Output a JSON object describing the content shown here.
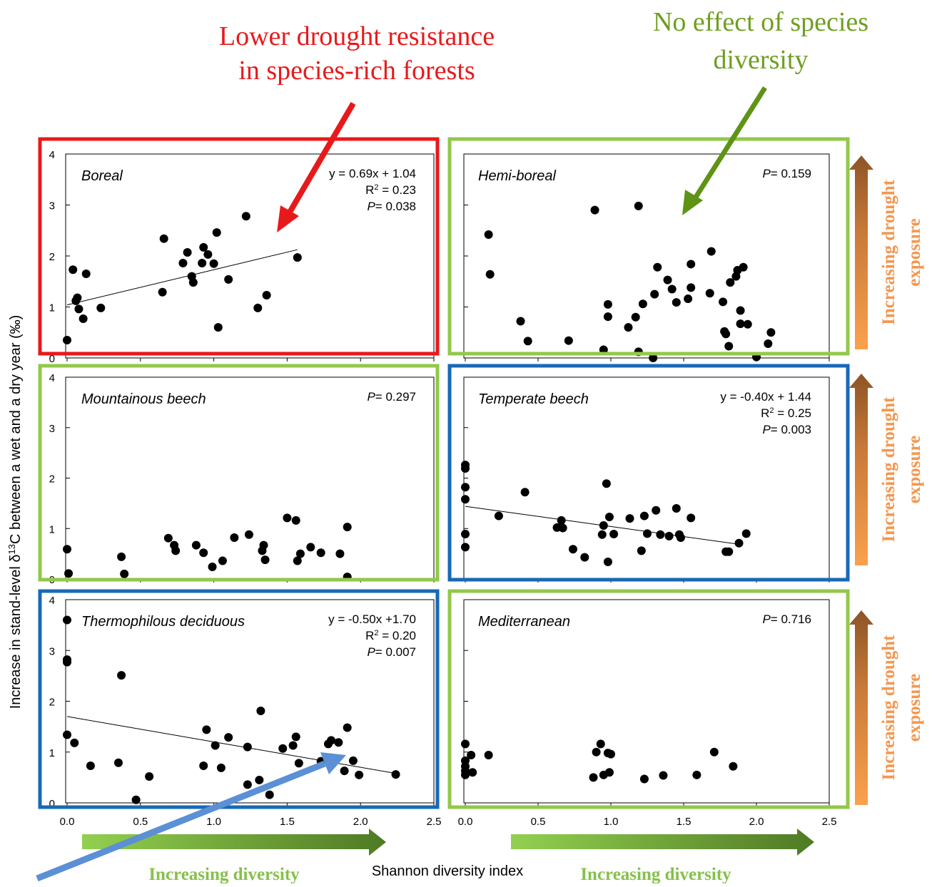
{
  "annotations": {
    "top_left": [
      "Lower drought resistance",
      "in species-rich forests"
    ],
    "top_right": [
      "No effect of species",
      "diversity"
    ]
  },
  "axes": {
    "ylabel_pre": "Increase in stand-level δ",
    "ylabel_sup": "13",
    "ylabel_post": "C between a wet and a dry year (‰)",
    "xlabel": "Shannon diversity index",
    "y_ticks": [
      "0",
      "1",
      "2",
      "3",
      "4"
    ],
    "x_ticks": [
      "0.0",
      "0.5",
      "1.0",
      "1.5",
      "2.0",
      "2.5"
    ]
  },
  "bottom_labels": [
    "Increasing diversity",
    "Increasing diversity"
  ],
  "side_labels": [
    "Increasing drought",
    "exposure"
  ],
  "colors": {
    "red": "#e8191b",
    "green": "#92c849",
    "blue": "#1769b6",
    "dark_green": "#5f9315",
    "arrow_blue": "#5b8fd6",
    "text_red": "#e8191b",
    "text_green": "#6f9e20",
    "side_orange": "#f5964f",
    "bottom_green": "#86c04a"
  },
  "chart_data": [
    {
      "type": "scatter",
      "title": "Boreal",
      "border": "red",
      "xlim": [
        0,
        2.5
      ],
      "ylim": [
        0,
        4
      ],
      "stats": [
        "y = 0.69x + 1.04",
        "R² = 0.23",
        "P= 0.038"
      ],
      "trend": {
        "slope": 0.69,
        "intercept": 1.04,
        "x_range": [
          0.0,
          1.57
        ]
      },
      "points": [
        [
          0.0,
          0.35
        ],
        [
          0.04,
          1.73
        ],
        [
          0.06,
          1.12
        ],
        [
          0.07,
          1.18
        ],
        [
          0.08,
          0.96
        ],
        [
          0.11,
          0.77
        ],
        [
          0.13,
          1.65
        ],
        [
          0.23,
          0.98
        ],
        [
          0.65,
          1.29
        ],
        [
          0.66,
          2.34
        ],
        [
          0.79,
          1.86
        ],
        [
          0.82,
          2.07
        ],
        [
          0.85,
          1.6
        ],
        [
          0.86,
          1.48
        ],
        [
          0.92,
          1.86
        ],
        [
          0.93,
          2.17
        ],
        [
          0.96,
          2.03
        ],
        [
          1.0,
          1.85
        ],
        [
          1.02,
          2.46
        ],
        [
          1.03,
          0.6
        ],
        [
          1.1,
          1.54
        ],
        [
          1.22,
          2.78
        ],
        [
          1.3,
          0.98
        ],
        [
          1.36,
          1.23
        ],
        [
          1.57,
          1.97
        ]
      ]
    },
    {
      "type": "scatter",
      "title": "Hemi-boreal",
      "border": "green",
      "xlim": [
        0,
        2.5
      ],
      "ylim": [
        0,
        4
      ],
      "stats": [
        "P= 0.159"
      ],
      "points": [
        [
          0.16,
          2.42
        ],
        [
          0.17,
          1.64
        ],
        [
          0.38,
          0.72
        ],
        [
          0.43,
          0.33
        ],
        [
          0.71,
          0.34
        ],
        [
          0.89,
          2.9
        ],
        [
          0.95,
          0.16
        ],
        [
          0.98,
          1.05
        ],
        [
          0.98,
          0.81
        ],
        [
          1.12,
          0.6
        ],
        [
          1.17,
          0.8
        ],
        [
          1.19,
          2.98
        ],
        [
          1.19,
          0.12
        ],
        [
          1.22,
          1.06
        ],
        [
          1.29,
          0.0
        ],
        [
          1.3,
          1.25
        ],
        [
          1.32,
          1.78
        ],
        [
          1.39,
          1.53
        ],
        [
          1.42,
          1.35
        ],
        [
          1.45,
          1.09
        ],
        [
          1.53,
          1.16
        ],
        [
          1.55,
          1.38
        ],
        [
          1.55,
          1.84
        ],
        [
          1.68,
          1.27
        ],
        [
          1.69,
          2.09
        ],
        [
          1.77,
          1.1
        ],
        [
          1.78,
          0.52
        ],
        [
          1.79,
          0.47
        ],
        [
          1.81,
          0.23
        ],
        [
          1.82,
          1.48
        ],
        [
          1.86,
          1.6
        ],
        [
          1.87,
          1.72
        ],
        [
          1.89,
          0.93
        ],
        [
          1.89,
          0.67
        ],
        [
          1.91,
          1.78
        ],
        [
          1.94,
          0.66
        ],
        [
          2.0,
          0.02
        ],
        [
          2.08,
          0.28
        ],
        [
          2.1,
          0.5
        ]
      ]
    },
    {
      "type": "scatter",
      "title": "Mountainous beech",
      "border": "green",
      "xlim": [
        0,
        2.5
      ],
      "ylim": [
        0,
        4
      ],
      "stats": [
        "P= 0.297"
      ],
      "points": [
        [
          0.0,
          0.59
        ],
        [
          0.01,
          0.11
        ],
        [
          0.37,
          0.44
        ],
        [
          0.39,
          0.1
        ],
        [
          0.69,
          0.81
        ],
        [
          0.73,
          0.67
        ],
        [
          0.74,
          0.56
        ],
        [
          0.88,
          0.67
        ],
        [
          0.93,
          0.52
        ],
        [
          0.99,
          0.24
        ],
        [
          1.06,
          0.36
        ],
        [
          1.14,
          0.82
        ],
        [
          1.24,
          0.88
        ],
        [
          1.33,
          0.56
        ],
        [
          1.34,
          0.67
        ],
        [
          1.35,
          0.38
        ],
        [
          1.5,
          1.21
        ],
        [
          1.56,
          1.16
        ],
        [
          1.57,
          0.36
        ],
        [
          1.59,
          0.5
        ],
        [
          1.66,
          0.63
        ],
        [
          1.73,
          0.52
        ],
        [
          1.86,
          0.5
        ],
        [
          1.91,
          1.03
        ],
        [
          1.91,
          0.04
        ]
      ]
    },
    {
      "type": "scatter",
      "title": "Temperate beech",
      "border": "blue",
      "xlim": [
        0,
        2.5
      ],
      "ylim": [
        0,
        4
      ],
      "stats": [
        "y = -0.40x + 1.44",
        "R² = 0.25",
        "P= 0.003"
      ],
      "trend": {
        "slope": -0.4,
        "intercept": 1.44,
        "x_range": [
          0.0,
          1.85
        ]
      },
      "points": [
        [
          0.0,
          2.26
        ],
        [
          0.0,
          2.19
        ],
        [
          0.0,
          1.82
        ],
        [
          0.0,
          1.58
        ],
        [
          0.0,
          0.89
        ],
        [
          0.0,
          0.63
        ],
        [
          0.23,
          1.25
        ],
        [
          0.41,
          1.72
        ],
        [
          0.63,
          1.02
        ],
        [
          0.66,
          1.16
        ],
        [
          0.67,
          1.01
        ],
        [
          0.74,
          0.59
        ],
        [
          0.82,
          0.43
        ],
        [
          0.94,
          0.88
        ],
        [
          0.95,
          1.06
        ],
        [
          0.97,
          1.89
        ],
        [
          0.98,
          0.34
        ],
        [
          0.99,
          1.23
        ],
        [
          1.02,
          0.89
        ],
        [
          1.13,
          1.2
        ],
        [
          1.21,
          0.56
        ],
        [
          1.23,
          1.25
        ],
        [
          1.25,
          0.9
        ],
        [
          1.31,
          1.36
        ],
        [
          1.34,
          0.88
        ],
        [
          1.4,
          0.85
        ],
        [
          1.45,
          1.4
        ],
        [
          1.47,
          0.88
        ],
        [
          1.48,
          0.82
        ],
        [
          1.55,
          1.21
        ],
        [
          1.79,
          0.54
        ],
        [
          1.81,
          0.54
        ],
        [
          1.88,
          0.71
        ],
        [
          1.93,
          0.9
        ]
      ]
    },
    {
      "type": "scatter",
      "title": "Thermophilous deciduous",
      "border": "blue",
      "xlim": [
        0,
        2.5
      ],
      "ylim": [
        0,
        4
      ],
      "stats": [
        "y = -0.50x +1.70",
        "R² = 0.20",
        "P= 0.007"
      ],
      "trend": {
        "slope": -0.5,
        "intercept": 1.7,
        "x_range": [
          0.0,
          2.24
        ]
      },
      "points": [
        [
          0.0,
          3.6
        ],
        [
          0.0,
          2.82
        ],
        [
          0.0,
          2.77
        ],
        [
          0.0,
          1.34
        ],
        [
          0.05,
          1.18
        ],
        [
          0.16,
          0.73
        ],
        [
          0.35,
          0.79
        ],
        [
          0.37,
          2.51
        ],
        [
          0.47,
          0.06
        ],
        [
          0.56,
          0.52
        ],
        [
          0.93,
          0.73
        ],
        [
          0.95,
          1.44
        ],
        [
          1.01,
          1.13
        ],
        [
          1.05,
          0.69
        ],
        [
          1.1,
          1.29
        ],
        [
          1.23,
          0.36
        ],
        [
          1.23,
          1.1
        ],
        [
          1.31,
          0.45
        ],
        [
          1.32,
          1.81
        ],
        [
          1.38,
          0.16
        ],
        [
          1.47,
          1.07
        ],
        [
          1.54,
          1.13
        ],
        [
          1.56,
          1.3
        ],
        [
          1.58,
          0.78
        ],
        [
          1.73,
          0.82
        ],
        [
          1.78,
          1.16
        ],
        [
          1.8,
          1.23
        ],
        [
          1.85,
          1.19
        ],
        [
          1.89,
          0.63
        ],
        [
          1.91,
          1.48
        ],
        [
          1.95,
          0.83
        ],
        [
          1.99,
          0.55
        ],
        [
          2.24,
          0.56
        ]
      ]
    },
    {
      "type": "scatter",
      "title": "Mediterranean",
      "border": "green",
      "xlim": [
        0,
        2.5
      ],
      "ylim": [
        0,
        4
      ],
      "stats": [
        "P= 0.716"
      ],
      "points": [
        [
          0.0,
          1.16
        ],
        [
          0.0,
          0.83
        ],
        [
          0.0,
          0.72
        ],
        [
          0.0,
          0.63
        ],
        [
          0.0,
          0.55
        ],
        [
          0.04,
          0.94
        ],
        [
          0.05,
          0.6
        ],
        [
          0.16,
          0.94
        ],
        [
          0.88,
          0.5
        ],
        [
          0.9,
          1.0
        ],
        [
          0.93,
          1.16
        ],
        [
          0.95,
          0.55
        ],
        [
          0.98,
          0.98
        ],
        [
          0.99,
          0.6
        ],
        [
          1.0,
          0.96
        ],
        [
          1.23,
          0.47
        ],
        [
          1.36,
          0.54
        ],
        [
          1.59,
          0.55
        ],
        [
          1.71,
          1.0
        ],
        [
          1.84,
          0.72
        ]
      ]
    }
  ]
}
